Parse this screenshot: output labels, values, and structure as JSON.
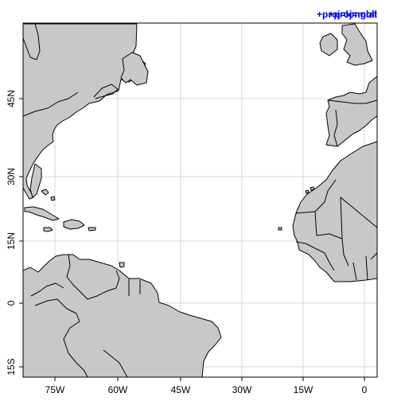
{
  "map": {
    "projection_label": "+proj=moll",
    "projection_label_overlay": "+proj=longlat",
    "label_color": "#0000ff",
    "land_fill": "#c8c8c8",
    "coast_color": "#000000",
    "grid_color": "#d6d6d6",
    "grid": true,
    "longitude_labels": [
      "75W",
      "60W",
      "45W",
      "30W",
      "15W",
      "0"
    ],
    "latitude_labels": [
      "15S",
      "0",
      "15N",
      "30N",
      "45N"
    ],
    "extent": {
      "lon": [
        -82,
        3
      ],
      "lat": [
        -17,
        57
      ]
    }
  }
}
